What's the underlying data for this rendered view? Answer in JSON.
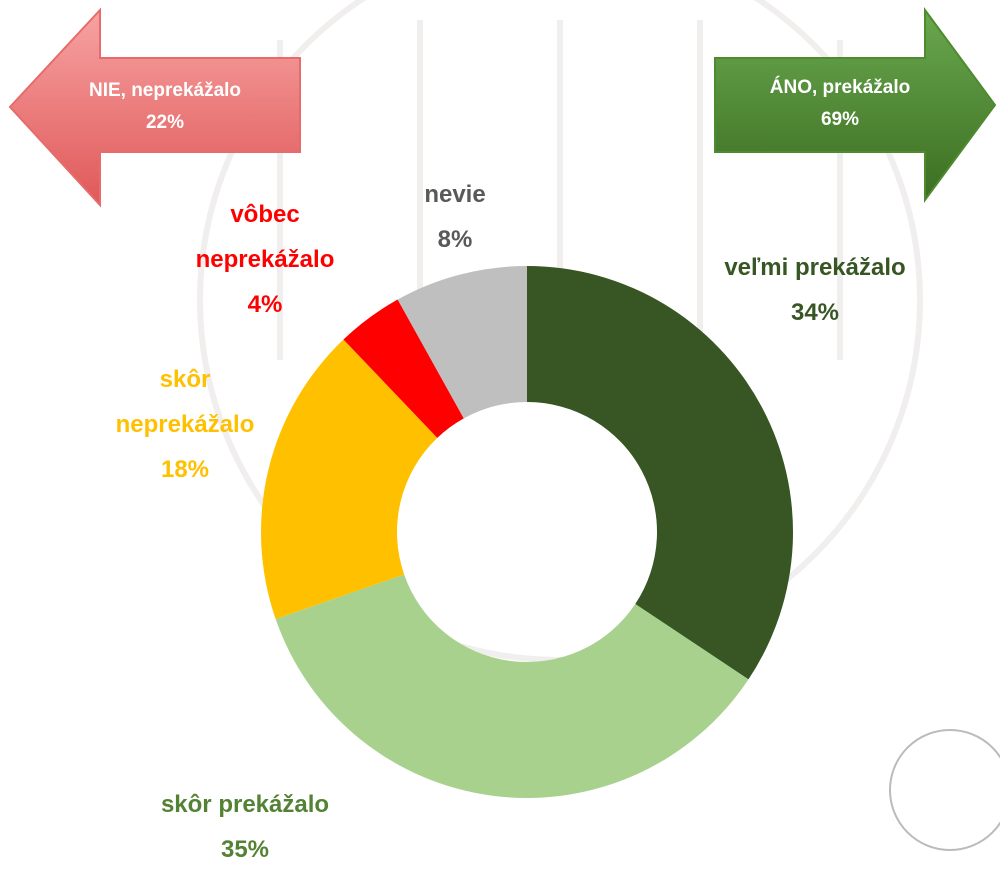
{
  "chart_data": {
    "type": "donut",
    "categories": [
      "veľmi prekážalo",
      "skôr prekážalo",
      "skôr neprekážalo",
      "vôbec neprekážalo",
      "nevie"
    ],
    "values": [
      34,
      35,
      18,
      4,
      8
    ],
    "value_labels": [
      "34%",
      "35%",
      "18%",
      "4%",
      "8%"
    ],
    "colors": [
      "#375623",
      "#a9d18e",
      "#ffc000",
      "#ff0000",
      "#bfbfbf"
    ],
    "label_colors": [
      "#375623",
      "#548235",
      "#ffc000",
      "#ff0000",
      "#595959"
    ],
    "annotations": [
      {
        "text": "NIE, neprekážalo",
        "value": 22,
        "value_label": "22%",
        "color": "#e66b6b"
      },
      {
        "text": "ÁNO, prekážalo",
        "value": 69,
        "value_label": "69%",
        "color": "#4f8a2e"
      }
    ]
  }
}
